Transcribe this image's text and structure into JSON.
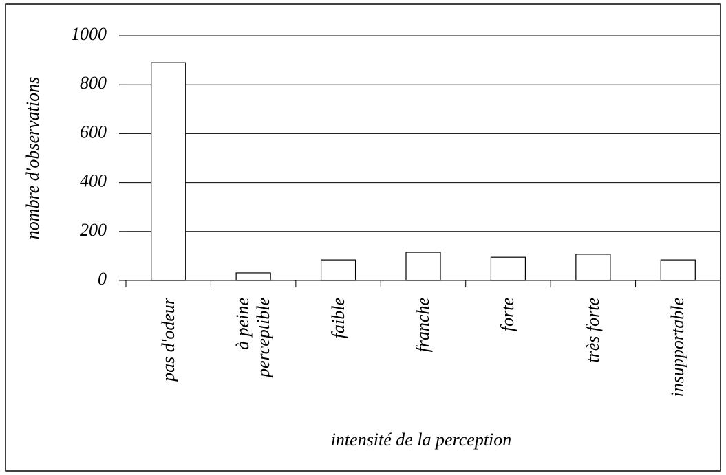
{
  "chart_data": {
    "type": "bar",
    "categories": [
      "pas d'odeur",
      "à peine perceptible",
      "faible",
      "franche",
      "forte",
      "très forte",
      "insupportable"
    ],
    "values": [
      890,
      31,
      84,
      115,
      95,
      107,
      84
    ],
    "color": "#ffffff",
    "ylim": [
      0,
      1000
    ],
    "yticks": [
      0,
      200,
      400,
      600,
      800,
      1000
    ],
    "grid": true,
    "y_label": "nombre d'observations",
    "x_label": "intensité de la perception"
  }
}
